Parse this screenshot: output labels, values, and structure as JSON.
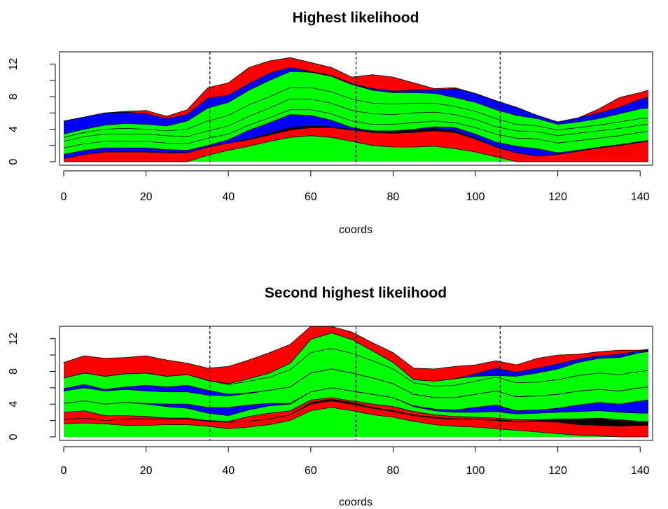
{
  "chart_data": [
    {
      "type": "area",
      "title": "Highest likelihood",
      "xlabel": "coords",
      "ylabel": "",
      "xlim": [
        0,
        142
      ],
      "ylim": [
        0,
        13
      ],
      "x_ticks": [
        0,
        20,
        40,
        60,
        80,
        100,
        120,
        140
      ],
      "y_ticks": [
        0,
        4,
        8,
        12
      ],
      "vlines": [
        35.5,
        71,
        106
      ],
      "x": [
        0,
        5,
        10,
        15,
        20,
        25,
        30,
        35,
        40,
        45,
        50,
        55,
        60,
        65,
        70,
        75,
        80,
        85,
        90,
        95,
        100,
        105,
        110,
        115,
        120,
        125,
        130,
        135,
        140,
        142
      ],
      "layer_colors": [
        "#00ff00",
        "#ff0000",
        "#000000",
        "#0000ff",
        "#00ff00",
        "#00ff00",
        "#00ff00",
        "#00ff00",
        "#0000ff",
        "#ff0000"
      ],
      "series": [
        {
          "values": [
            0,
            0,
            0,
            0,
            0,
            0,
            0,
            0.8,
            1.4,
            1.9,
            2.5,
            3.0,
            3.2,
            3.0,
            2.5,
            2.0,
            1.8,
            1.8,
            1.9,
            1.6,
            1.2,
            0.6,
            0,
            0,
            0,
            0,
            0,
            0,
            0,
            0
          ]
        },
        {
          "values": [
            0.4,
            0.9,
            1.2,
            1.2,
            1.2,
            1.1,
            1.1,
            1.0,
            0.9,
            0.8,
            0.8,
            0.9,
            1.0,
            1.2,
            1.4,
            1.6,
            1.7,
            1.8,
            1.9,
            2.0,
            1.6,
            1.2,
            1.1,
            0.7,
            0.9,
            1.3,
            1.7,
            2.0,
            2.4,
            2.5
          ]
        },
        {
          "values": [
            0,
            0,
            0,
            0,
            0,
            0,
            0,
            0,
            0,
            0.1,
            0.2,
            0.3,
            0.2,
            0.1,
            0.1,
            0.1,
            0.2,
            0.3,
            0.3,
            0.2,
            0.1,
            0,
            0,
            0,
            0,
            0,
            0,
            0,
            0,
            0
          ]
        },
        {
          "values": [
            0.5,
            0.5,
            0.5,
            0.5,
            0.5,
            0.4,
            0.3,
            0.2,
            0.4,
            1.1,
            1.3,
            1.6,
            1.3,
            0.8,
            0.2,
            0.1,
            0.1,
            0.1,
            0.2,
            0.4,
            0.5,
            0.6,
            0.8,
            0.9,
            0.2,
            0.1,
            0.1,
            0.1,
            0.1,
            0.1
          ]
        },
        {
          "values": [
            0.8,
            0.8,
            0.8,
            0.8,
            0.8,
            0.8,
            0.8,
            0.9,
            0.7,
            0.6,
            0.6,
            0.6,
            0.7,
            0.8,
            0.8,
            0.8,
            0.8,
            0.8,
            0.7,
            0.6,
            0.8,
            1.0,
            1.0,
            1.2,
            1.2,
            1.2,
            1.1,
            1.1,
            1.1,
            1.1
          ]
        },
        {
          "values": [
            0.8,
            0.9,
            0.9,
            0.9,
            0.9,
            0.9,
            0.9,
            0.9,
            1.0,
            1.1,
            1.2,
            1.3,
            1.3,
            1.3,
            1.3,
            1.3,
            1.2,
            1.2,
            1.1,
            1.0,
            1.0,
            0.9,
            0.9,
            0.9,
            0.9,
            0.9,
            0.9,
            0.9,
            0.9,
            0.9
          ]
        },
        {
          "values": [
            0.5,
            0.5,
            0.6,
            0.7,
            0.6,
            0.6,
            0.9,
            1.2,
            1.3,
            1.4,
            1.4,
            1.4,
            1.4,
            1.4,
            1.4,
            1.3,
            1.3,
            1.2,
            1.1,
            1.0,
            1.0,
            1.0,
            0.8,
            0.7,
            0.7,
            0.7,
            0.7,
            0.8,
            0.8,
            0.8
          ]
        },
        {
          "values": [
            0.4,
            0.4,
            0.5,
            0.6,
            0.6,
            0.6,
            1.0,
            1.6,
            1.6,
            1.8,
            2.0,
            2.0,
            1.9,
            1.9,
            1.8,
            1.6,
            1.4,
            1.3,
            1.2,
            1.1,
            1.1,
            1.1,
            1.1,
            0.9,
            0.7,
            0.7,
            0.8,
            1.0,
            1.2,
            1.2
          ]
        },
        {
          "values": [
            1.6,
            1.5,
            1.5,
            1.4,
            1.3,
            0.9,
            0.8,
            1.2,
            0.9,
            0.8,
            0.9,
            0.5,
            0.1,
            0.1,
            0.1,
            0.2,
            0.2,
            0.3,
            0.4,
            1.1,
            1.1,
            1.1,
            1.0,
            0.4,
            0.3,
            0.5,
            0.7,
            0.8,
            1.2,
            1.3
          ]
        },
        {
          "values": [
            0,
            0,
            0,
            0.1,
            0.4,
            0.3,
            0.6,
            1.3,
            1.5,
            2.0,
            1.5,
            1.2,
            1.1,
            1.0,
            0.8,
            1.7,
            1.7,
            0.9,
            0.2,
            0.1,
            0,
            0,
            0,
            0,
            0,
            0,
            0.5,
            1.2,
            0.8,
            0.9
          ]
        }
      ]
    },
    {
      "type": "area",
      "title": "Second highest likelihood",
      "xlabel": "coords",
      "ylabel": "",
      "xlim": [
        0,
        142
      ],
      "ylim": [
        0,
        13
      ],
      "x_ticks": [
        0,
        20,
        40,
        60,
        80,
        100,
        120,
        140
      ],
      "y_ticks": [
        0,
        4,
        8,
        12
      ],
      "vlines": [
        35.5,
        71,
        106
      ],
      "x": [
        0,
        5,
        10,
        15,
        20,
        25,
        30,
        35,
        40,
        45,
        50,
        55,
        60,
        65,
        70,
        75,
        80,
        85,
        90,
        95,
        100,
        105,
        110,
        115,
        120,
        125,
        130,
        135,
        140,
        142
      ],
      "layer_colors": [
        "#00ff00",
        "#ff0000",
        "#000000",
        "#ff0000",
        "#00ff00",
        "#0000ff",
        "#00ff00",
        "#0000ff",
        "#00ff00",
        "#00ff00",
        "#0000ff",
        "#ff0000"
      ],
      "series": [
        {
          "values": [
            1.6,
            1.7,
            1.6,
            1.4,
            1.4,
            1.5,
            1.5,
            1.3,
            1.0,
            1.2,
            1.5,
            2.0,
            3.2,
            3.6,
            3.2,
            2.7,
            2.4,
            1.9,
            1.5,
            1.3,
            1.2,
            1.0,
            0.8,
            0.6,
            0.4,
            0.2,
            0.1,
            0,
            0,
            0
          ]
        },
        {
          "values": [
            0.5,
            0.6,
            0.4,
            0.8,
            0.8,
            0.7,
            0.7,
            0.6,
            0.8,
            0.7,
            0.7,
            0.7,
            0.8,
            0.8,
            0.8,
            0.8,
            0.7,
            0.7,
            0.8,
            0.8,
            0.9,
            1.0,
            1.0,
            1.3,
            1.4,
            1.3,
            1.3,
            1.3,
            1.4,
            1.4
          ]
        },
        {
          "values": [
            0,
            0,
            0,
            0,
            0,
            0,
            0,
            0,
            0,
            0,
            0,
            0,
            0.2,
            0.2,
            0.2,
            0.1,
            0.1,
            0.1,
            0.1,
            0.1,
            0.1,
            0.1,
            0.1,
            0.1,
            0.3,
            0.6,
            0.8,
            0.7,
            0.4,
            0.4
          ]
        },
        {
          "values": [
            0.9,
            0.9,
            0.6,
            0.4,
            0.3,
            0.1,
            0.1,
            0.1,
            0.1,
            0.6,
            0.7,
            0.5,
            0.3,
            0.2,
            0.2,
            0.4,
            0.5,
            0.4,
            0.3,
            0.3,
            0.2,
            0.2,
            0.2,
            0.1,
            0.1,
            0.1,
            0.1,
            0.1,
            0.1,
            0.1
          ]
        },
        {
          "values": [
            1.1,
            1.2,
            1.4,
            1.6,
            1.5,
            1.4,
            1.2,
            0.9,
            0.7,
            0.8,
            0.9,
            0.8,
            1.0,
            1.2,
            1.2,
            1.2,
            1.1,
            0.6,
            0.5,
            0.5,
            0.6,
            0.8,
            0.7,
            0.8,
            0.8,
            0.9,
            0.9,
            0.9,
            1.0,
            1.0
          ]
        },
        {
          "values": [
            0,
            0,
            0,
            0,
            0.1,
            0.3,
            0.5,
            0.7,
            1.0,
            0.6,
            0.3,
            0.1,
            0,
            0,
            0,
            0,
            0,
            0.1,
            0.2,
            0.3,
            0.6,
            0.8,
            0.4,
            0.4,
            0.5,
            0.8,
            1.0,
            1.0,
            1.5,
            1.6
          ]
        },
        {
          "values": [
            1.5,
            1.6,
            1.6,
            1.6,
            1.5,
            1.5,
            1.5,
            1.5,
            1.4,
            1.4,
            1.6,
            2.0,
            2.3,
            2.3,
            2.2,
            2.0,
            1.7,
            1.4,
            1.4,
            1.5,
            1.6,
            1.7,
            1.7,
            1.7,
            1.7,
            1.7,
            1.6,
            1.6,
            1.6,
            1.6
          ]
        },
        {
          "values": [
            0.3,
            0.4,
            0.2,
            0.3,
            0.7,
            0.6,
            0.8,
            0.6,
            0.2,
            0.1,
            0,
            0,
            0,
            0,
            0,
            0,
            0,
            0,
            0,
            0,
            0,
            0,
            0,
            0,
            0,
            0,
            0,
            0,
            0,
            0
          ]
        },
        {
          "values": [
            1.3,
            1.4,
            1.6,
            1.6,
            1.5,
            1.3,
            1.3,
            1.2,
            1.2,
            1.4,
            1.6,
            2.1,
            2.5,
            2.5,
            2.4,
            2.1,
            1.8,
            1.4,
            1.4,
            1.5,
            1.6,
            1.7,
            1.7,
            1.7,
            1.8,
            1.9,
            2.0,
            2.0,
            2.0,
            2.0
          ]
        },
        {
          "values": [
            0,
            0,
            0,
            0,
            0,
            0,
            0,
            0,
            0.1,
            0.3,
            0.5,
            0.8,
            1.6,
            1.9,
            1.7,
            1.2,
            0.8,
            0.4,
            0.6,
            0.8,
            0.6,
            0.2,
            0.8,
            1.1,
            1.3,
            1.6,
            1.8,
            2.1,
            2.3,
            2.3
          ]
        },
        {
          "values": [
            0,
            0,
            0,
            0,
            0,
            0,
            0,
            0,
            0,
            0,
            0,
            0,
            0,
            0,
            0,
            0,
            0,
            0,
            0,
            0,
            0.3,
            0.9,
            0.5,
            0.6,
            0.6,
            0.4,
            0.3,
            0.4,
            0.2,
            0.2
          ]
        },
        {
          "values": [
            1.9,
            2.1,
            2.2,
            2.0,
            2.1,
            2.0,
            1.4,
            1.5,
            2.1,
            2.3,
            2.5,
            2.3,
            1.6,
            0.8,
            0.9,
            1.0,
            1.2,
            1.4,
            1.5,
            1.5,
            1.1,
            0.9,
            0.9,
            1.2,
            1.1,
            0.6,
            0.5,
            0.5,
            0.1,
            0.1
          ]
        }
      ]
    }
  ]
}
